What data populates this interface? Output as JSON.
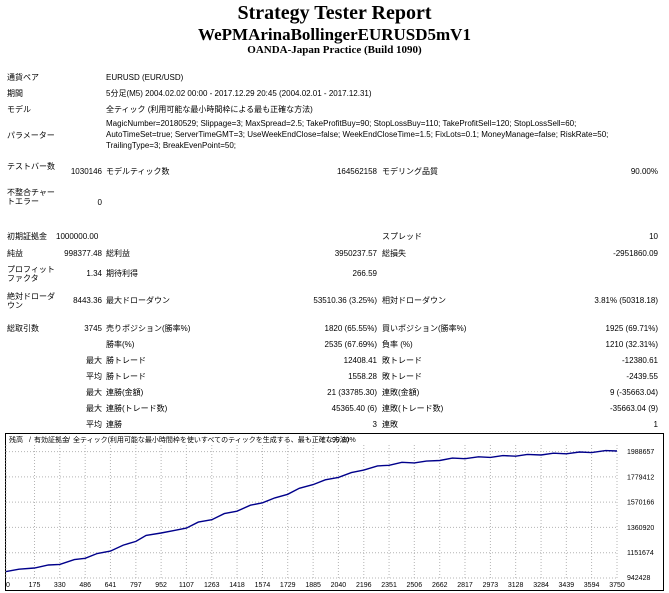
{
  "header": {
    "title": "Strategy Tester Report",
    "ea": "WePMArinaBollingerEURUSD5mV1",
    "broker": "OANDA-Japan Practice (Build 1090)"
  },
  "settings": {
    "symbol_label": "通貨ペア",
    "symbol": "EURUSD (EUR/USD)",
    "period_label": "期間",
    "period": "5分足(M5) 2004.02.02 00:00 - 2017.12.29 20:45 (2004.02.01 - 2017.12.31)",
    "model_label": "モデル",
    "model": "全ティック (利用可能な最小時間枠による最も正確な方法)",
    "params_label": "パラメーター",
    "params_line1": "MagicNumber=20180529; Slippage=3; MaxSpread=2.5; TakeProfitBuy=90; StopLossBuy=110; TakeProfitSell=120; StopLossSell=60;",
    "params_line2": "AutoTimeSet=true; ServerTimeGMT=3; UseWeekEndClose=false; WeekEndCloseTime=1.5; FixLots=0.1; MoneyManage=false; RiskRate=50;",
    "params_line3": "TrailingType=3; BreakEvenPoint=50;"
  },
  "stats": {
    "bars_label": "テストバー数",
    "bars": "1030146",
    "ticks_label": "モデルティック数",
    "ticks": "164562158",
    "quality_label": "モデリング品質",
    "quality": "90.00%",
    "mismatch_label": "不整合チャートエラー",
    "mismatch": "0",
    "deposit_label": "初期証拠金",
    "deposit": "1000000.00",
    "spread_label": "スプレッド",
    "spread": "10",
    "net_label": "純益",
    "net": "998377.48",
    "gross_profit_label": "総利益",
    "gross_profit": "3950237.57",
    "gross_loss_label": "総損失",
    "gross_loss": "-2951860.09",
    "pf_label": "プロフィットファクタ",
    "pf": "1.34",
    "payoff_label": "期待利得",
    "payoff": "266.59",
    "abs_dd_label": "絶対ドローダウン",
    "abs_dd": "8443.36",
    "max_dd_label": "最大ドローダウン",
    "max_dd": "53510.36 (3.25%)",
    "rel_dd_label": "相対ドローダウン",
    "rel_dd": "3.81% (50318.18)",
    "trades_label": "総取引数",
    "trades": "3745",
    "short_label": "売りポジション(勝率%)",
    "short": "1820 (65.55%)",
    "long_label": "買いポジション(勝率%)",
    "long": "1925 (69.71%)",
    "win_label": "勝率(%)",
    "win": "2535 (67.69%)",
    "loss_label": "負率 (%)",
    "loss": "1210 (32.31%)",
    "max_label": "最大",
    "largest_win_label": "勝トレード",
    "largest_win": "12408.41",
    "largest_loss_label": "敗トレード",
    "largest_loss": "-12380.61",
    "avg_label": "平均",
    "avg_win_label": "勝トレード",
    "avg_win": "1558.28",
    "avg_loss_label": "敗トレード",
    "avg_loss": "-2439.55",
    "max_consec_win_label": "連勝(金額)",
    "max_consec_win": "21 (33785.30)",
    "max_consec_loss_label": "連敗(金額)",
    "max_consec_loss": "9 (-35663.04)",
    "max_consec_profit_label": "連勝(トレード数)",
    "max_consec_profit": "45365.40 (6)",
    "max_consec_lossamt_label": "連敗(トレード数)",
    "max_consec_lossamt": "-35663.04 (9)",
    "avg_consec_win_label": "連勝",
    "avg_consec_win": "3",
    "avg_consec_loss_label": "連敗",
    "avg_consec_loss": "1"
  },
  "chart_data": {
    "type": "line",
    "legend_balance": "残高",
    "legend_equity": "有効証拠金",
    "legend_desc": "全ティック(利用可能な最小時間枠を使いすべてのティックを生成する、最も正確な方法)",
    "legend_quality": "90.00%",
    "x_ticks": [
      0,
      175,
      330,
      486,
      641,
      797,
      952,
      1107,
      1263,
      1418,
      1574,
      1729,
      1885,
      2040,
      2196,
      2351,
      2506,
      2662,
      2817,
      2973,
      3128,
      3284,
      3439,
      3594,
      3750
    ],
    "y_ticks": [
      942428,
      1151674,
      1360920,
      1570166,
      1779412,
      1988657
    ],
    "xlim": [
      0,
      3750
    ],
    "ylim": [
      942428,
      2043000
    ],
    "colors": {
      "balance": "#00008b",
      "grid": "#b4b4b4",
      "legend_balance": "#0000ff",
      "legend_equity": "#008000"
    },
    "series": [
      {
        "name": "残高",
        "x": [
          0,
          80,
          175,
          260,
          330,
          420,
          486,
          560,
          641,
          720,
          797,
          860,
          952,
          1030,
          1107,
          1180,
          1263,
          1340,
          1418,
          1500,
          1574,
          1650,
          1729,
          1800,
          1885,
          1960,
          2040,
          2120,
          2196,
          2280,
          2351,
          2430,
          2506,
          2580,
          2662,
          2740,
          2817,
          2900,
          2973,
          3050,
          3128,
          3200,
          3284,
          3360,
          3439,
          3520,
          3594,
          3680,
          3750
        ],
        "y": [
          1000000,
          1010000,
          1030000,
          1045000,
          1060000,
          1090000,
          1110000,
          1140000,
          1170000,
          1210000,
          1250000,
          1290000,
          1320000,
          1330000,
          1360000,
          1400000,
          1430000,
          1470000,
          1500000,
          1540000,
          1570000,
          1600000,
          1640000,
          1680000,
          1720000,
          1750000,
          1780000,
          1810000,
          1840000,
          1865000,
          1880000,
          1895000,
          1900000,
          1905000,
          1920000,
          1930000,
          1935000,
          1940000,
          1945000,
          1950000,
          1955000,
          1960000,
          1965000,
          1970000,
          1975000,
          1980000,
          1985000,
          1992000,
          1998000
        ]
      }
    ]
  }
}
